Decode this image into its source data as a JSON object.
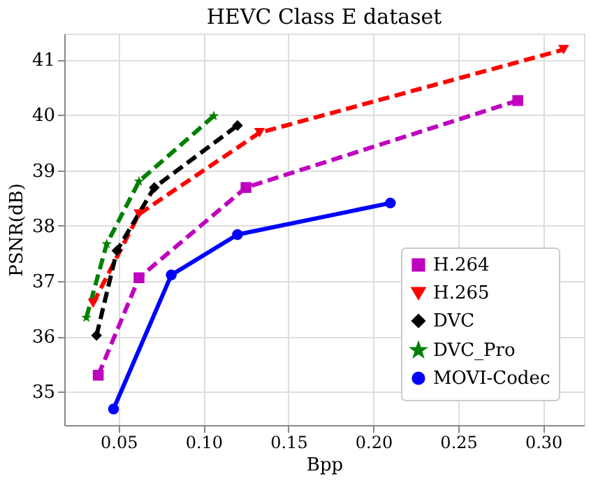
{
  "chart_data": {
    "type": "line",
    "title": "HEVC Class E dataset",
    "xlabel": "Bpp",
    "ylabel": "PSNR(dB)",
    "xlim": [
      0.018,
      0.324
    ],
    "ylim": [
      34.4,
      41.47
    ],
    "xticks": [
      0.05,
      {
        "value": 0.1,
        "label": "0.10"
      },
      0.15,
      {
        "value": 0.2,
        "label": "0.20"
      },
      0.25,
      {
        "value": 0.3,
        "label": "0.30"
      }
    ],
    "yticks": [
      35,
      36,
      37,
      38,
      39,
      40,
      41
    ],
    "grid": true,
    "legend": "bottom right",
    "series": [
      {
        "name": "H.264",
        "color": "#bf00bf",
        "marker": "square",
        "line_style": "dashed",
        "x": [
          0.038,
          0.062,
          0.125,
          0.285
        ],
        "values": [
          35.3,
          37.06,
          38.69,
          40.26
        ]
      },
      {
        "name": "H.265",
        "color": "#ff0000",
        "marker": "triangle",
        "line_style": "dashed",
        "x": [
          0.035,
          0.062,
          0.133,
          0.312
        ],
        "values": [
          36.6,
          38.21,
          39.68,
          41.18
        ]
      },
      {
        "name": "DVC",
        "color": "#000000",
        "marker": "diamond",
        "line_style": "dashed",
        "x": [
          0.037,
          0.049,
          0.071,
          0.12
        ],
        "values": [
          36.02,
          37.55,
          38.69,
          39.81
        ]
      },
      {
        "name": "DVC_Pro",
        "color": "#008000",
        "marker": "star",
        "line_style": "dashed",
        "x": [
          0.031,
          0.043,
          0.062,
          0.106
        ],
        "values": [
          36.34,
          37.67,
          38.8,
          39.98
        ]
      },
      {
        "name": "MOVI-Codec",
        "color": "#0000ff",
        "marker": "circle",
        "line_style": "solid",
        "x": [
          0.047,
          0.081,
          0.12,
          0.21
        ],
        "values": [
          34.69,
          37.11,
          37.84,
          38.41
        ]
      }
    ]
  }
}
